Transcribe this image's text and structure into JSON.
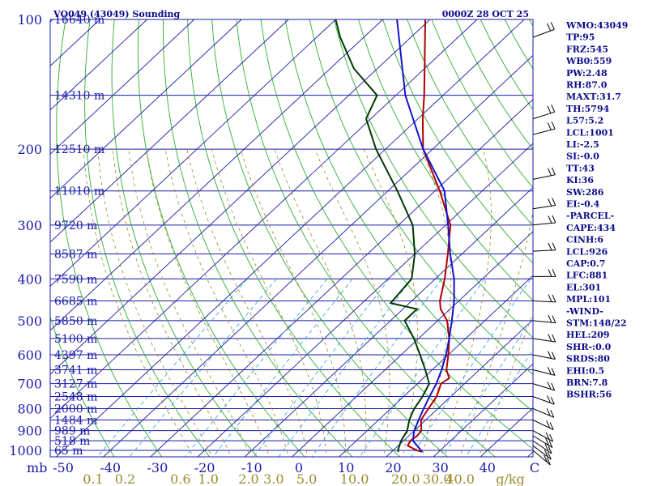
{
  "header": {
    "station": "VQ049 (43049) Sounding",
    "time": "0000Z 28 OCT 25"
  },
  "chart_data": {
    "type": "line",
    "title": "VQ049 (43049) Sounding",
    "xlabel": "",
    "ylabel": "",
    "pressure_levels": [
      100,
      200,
      300,
      400,
      500,
      600,
      700,
      800,
      900,
      1000
    ],
    "ylim": [
      1050,
      100
    ],
    "xlim": [
      -50,
      50
    ],
    "temperature_ticks": [
      {
        "value": -50,
        "label": "-50"
      },
      {
        "value": -40,
        "label": "-40"
      },
      {
        "value": -30,
        "label": "-30"
      },
      {
        "value": -20,
        "label": "-20"
      },
      {
        "value": -10,
        "label": "-10"
      },
      {
        "value": 0,
        "label": "0"
      },
      {
        "value": 10,
        "label": "10"
      },
      {
        "value": 20,
        "label": "20"
      },
      {
        "value": 30,
        "label": "30"
      },
      {
        "value": 40,
        "label": "40"
      },
      {
        "value": 50,
        "label": "C"
      }
    ],
    "x_origin_label": "mb",
    "mixing_ratio_labels": [
      "0.1",
      "0.2",
      "0.6",
      "1.0",
      "2.0",
      "3.0",
      "5.0",
      "10.0",
      "20.0",
      "30.0",
      "40.0"
    ],
    "mixing_ratio_values": [
      0.1,
      0.2,
      0.6,
      1.0,
      2.0,
      3.0,
      5.0,
      10.0,
      20.0,
      30.0,
      40.0
    ],
    "mixing_ratio_unit": "g/kg",
    "height_labels": [
      {
        "p": 100,
        "label": "16640 m"
      },
      {
        "p": 150,
        "label": "14310 m"
      },
      {
        "p": 200,
        "label": "12510 m"
      },
      {
        "p": 250,
        "label": "11010 m"
      },
      {
        "p": 300,
        "label": "9720 m"
      },
      {
        "p": 350,
        "label": "8587 m"
      },
      {
        "p": 400,
        "label": "7590 m"
      },
      {
        "p": 450,
        "label": "6685 m"
      },
      {
        "p": 500,
        "label": "5850 m"
      },
      {
        "p": 550,
        "label": "5100 m"
      },
      {
        "p": 600,
        "label": "4397 m"
      },
      {
        "p": 650,
        "label": "3741 m"
      },
      {
        "p": 700,
        "label": "3127 m"
      },
      {
        "p": 750,
        "label": "2548 m"
      },
      {
        "p": 800,
        "label": "2000 m"
      },
      {
        "p": 850,
        "label": "1484 m"
      },
      {
        "p": 900,
        "label": "989 m"
      },
      {
        "p": 950,
        "label": "518 m"
      },
      {
        "p": 1000,
        "label": "65 m"
      }
    ],
    "series": [
      {
        "color": "#b00000",
        "points": [
          [
            1008,
            26.5
          ],
          [
            1000,
            25
          ],
          [
            975,
            22
          ],
          [
            950,
            21.5
          ],
          [
            925,
            21.8
          ],
          [
            900,
            21.5
          ],
          [
            850,
            19
          ],
          [
            800,
            18
          ],
          [
            750,
            17
          ],
          [
            700,
            15
          ],
          [
            680,
            15.5
          ],
          [
            650,
            13
          ],
          [
            600,
            10
          ],
          [
            550,
            6.5
          ],
          [
            500,
            2
          ],
          [
            470,
            -2
          ],
          [
            450,
            -4
          ],
          [
            400,
            -8
          ],
          [
            350,
            -13
          ],
          [
            300,
            -19
          ],
          [
            250,
            -29
          ],
          [
            200,
            -42
          ],
          [
            170,
            -49
          ],
          [
            150,
            -54
          ],
          [
            130,
            -60
          ],
          [
            110,
            -67
          ],
          [
            100,
            -71
          ]
        ]
      },
      {
        "color": "#003a00",
        "points": [
          [
            1008,
            21.5
          ],
          [
            1000,
            21
          ],
          [
            950,
            19.5
          ],
          [
            900,
            18.5
          ],
          [
            850,
            16.5
          ],
          [
            800,
            15
          ],
          [
            750,
            14
          ],
          [
            700,
            12.5
          ],
          [
            650,
            8.5
          ],
          [
            600,
            4
          ],
          [
            550,
            -1
          ],
          [
            500,
            -7
          ],
          [
            470,
            -7
          ],
          [
            455,
            -14
          ],
          [
            400,
            -15
          ],
          [
            350,
            -20
          ],
          [
            300,
            -27
          ],
          [
            250,
            -38
          ],
          [
            200,
            -52
          ],
          [
            170,
            -61
          ],
          [
            150,
            -64
          ],
          [
            130,
            -75
          ],
          [
            110,
            -85
          ],
          [
            100,
            -90
          ]
        ]
      },
      {
        "color": "#1414c8",
        "points": [
          [
            1008,
            26.5
          ],
          [
            975,
            24
          ],
          [
            950,
            22
          ],
          [
            925,
            21
          ],
          [
            900,
            20
          ],
          [
            850,
            18.5
          ],
          [
            800,
            17
          ],
          [
            750,
            15.5
          ],
          [
            700,
            14
          ],
          [
            650,
            12
          ],
          [
            600,
            9.5
          ],
          [
            550,
            6.5
          ],
          [
            500,
            3
          ],
          [
            450,
            -1
          ],
          [
            400,
            -6
          ],
          [
            350,
            -12.5
          ],
          [
            300,
            -19.5
          ],
          [
            250,
            -28
          ],
          [
            200,
            -42
          ],
          [
            150,
            -58
          ],
          [
            100,
            -77
          ]
        ]
      }
    ],
    "wind_barbs": [
      {
        "p": 110
      },
      {
        "p": 170
      },
      {
        "p": 185
      },
      {
        "p": 235
      },
      {
        "p": 275
      },
      {
        "p": 300
      },
      {
        "p": 345
      },
      {
        "p": 395
      },
      {
        "p": 450
      },
      {
        "p": 500
      },
      {
        "p": 550
      },
      {
        "p": 600
      },
      {
        "p": 650
      },
      {
        "p": 700
      },
      {
        "p": 750
      },
      {
        "p": 800
      },
      {
        "p": 850
      },
      {
        "p": 900
      },
      {
        "p": 925
      },
      {
        "p": 950
      },
      {
        "p": 975
      },
      {
        "p": 1000
      }
    ],
    "grid": true
  },
  "indices": [
    "WMO:43049",
    "TP:95",
    "FRZ:545",
    "WB0:559",
    "PW:2.48",
    "RH:87.0",
    "MAXT:31.7",
    "TH:5794",
    "L57:5.2",
    "LCL:1001",
    "LI:-2.5",
    "SI:-0.0",
    "TT:43",
    "KI:36",
    "SW:286",
    "EI:-0.4",
    "-PARCEL-",
    "CAPE:434",
    "CINH:6",
    "LCL:926",
    "CAP:0.7",
    "LFC:881",
    "EL:301",
    "MPL:101",
    "-WIND-",
    "STM:148/22",
    "HEL:209",
    "SHR-:0.0",
    "SRDS:80",
    "EHI:0.5",
    "BRN:7.8",
    "BSHR:56"
  ]
}
